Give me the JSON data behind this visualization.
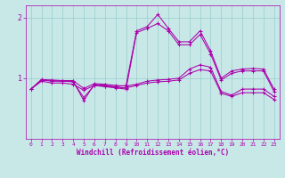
{
  "xlabel": "Windchill (Refroidissement éolien,°C)",
  "bg_color": "#c8e8e8",
  "line_color": "#aa00aa",
  "grid_color": "#99cccc",
  "xlim": [
    -0.5,
    23.5
  ],
  "ylim": [
    0.0,
    2.2
  ],
  "yticks": [
    1,
    2
  ],
  "xticks": [
    0,
    1,
    2,
    3,
    4,
    5,
    6,
    7,
    8,
    9,
    10,
    11,
    12,
    13,
    14,
    15,
    16,
    17,
    18,
    19,
    20,
    21,
    22,
    23
  ],
  "series": [
    [
      0.82,
      0.97,
      0.95,
      0.95,
      0.95,
      0.63,
      0.9,
      0.88,
      0.86,
      0.88,
      1.78,
      1.85,
      2.05,
      1.82,
      1.6,
      1.6,
      1.78,
      1.45,
      1.0,
      1.12,
      1.15,
      1.16,
      1.15,
      0.82
    ],
    [
      0.82,
      0.97,
      0.97,
      0.96,
      0.96,
      0.83,
      0.91,
      0.9,
      0.88,
      0.87,
      0.9,
      0.95,
      0.97,
      0.98,
      1.0,
      1.15,
      1.22,
      1.18,
      0.78,
      0.72,
      0.82,
      0.82,
      0.82,
      0.7
    ],
    [
      0.82,
      0.95,
      0.92,
      0.92,
      0.9,
      0.8,
      0.88,
      0.87,
      0.85,
      0.84,
      0.88,
      0.92,
      0.94,
      0.95,
      0.97,
      1.08,
      1.14,
      1.12,
      0.75,
      0.7,
      0.76,
      0.76,
      0.76,
      0.65
    ],
    [
      0.82,
      0.98,
      0.96,
      0.95,
      0.94,
      0.68,
      0.88,
      0.86,
      0.84,
      0.82,
      1.75,
      1.82,
      1.9,
      1.78,
      1.55,
      1.55,
      1.72,
      1.4,
      0.97,
      1.08,
      1.12,
      1.12,
      1.12,
      0.78
    ]
  ]
}
